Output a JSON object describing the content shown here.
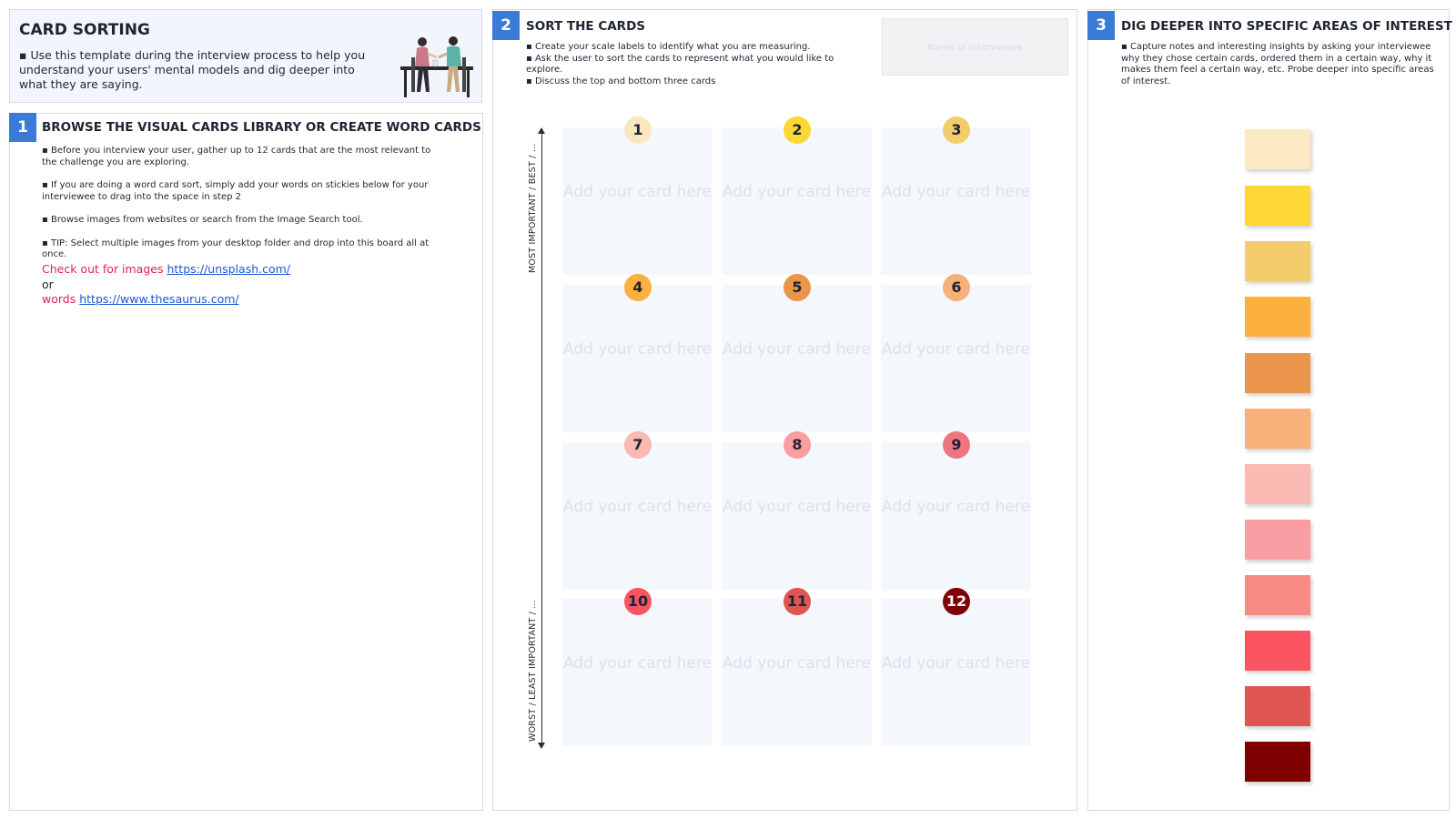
{
  "header": {
    "title": "CARD SORTING",
    "description": "▪ Use this template during the interview process to help you understand your users' mental models and dig deeper into what they are saying."
  },
  "step1": {
    "number": "1",
    "title": "BROWSE THE VISUAL CARDS LIBRARY OR CREATE WORD CARDS",
    "bullets": [
      "▪ Before you interview your user, gather up to 12 cards that are the most relevant to the challenge you are exploring.",
      "▪ If you are doing a word card sort, simply add your words on stickies below for your interviewee to drag into the space in step 2",
      "▪ Browse images from websites or search from the Image Search tool.",
      "▪ TIP: Select multiple images from your desktop folder and drop into this board all at once."
    ],
    "images_prefix": "Check out for images",
    "images_link": "https://unsplash.com/",
    "or_text": "or",
    "words_prefix": "words",
    "words_link": "https://www.thesaurus.com/"
  },
  "step2": {
    "number": "2",
    "title": "SORT THE CARDS",
    "bullets": [
      "▪ Create your scale labels to identify what you are measuring.",
      "▪ Ask the user to sort the cards to represent what you would like to explore.",
      "▪ Discuss the top and bottom three cards"
    ],
    "interviewee_placeholder": "Name of interviewee",
    "axis_top_label": "MOST IMPORTANT / BEST / ...",
    "axis_bottom_label": "WORST / LEAST IMPORTANT / ...",
    "card_placeholder": "Add your card here",
    "cards": [
      {
        "num": "1",
        "color": "#fbe7bd"
      },
      {
        "num": "2",
        "color": "#fdd835"
      },
      {
        "num": "3",
        "color": "#f2cd6a"
      },
      {
        "num": "4",
        "color": "#fbb040"
      },
      {
        "num": "5",
        "color": "#ea964a"
      },
      {
        "num": "6",
        "color": "#f7b07a"
      },
      {
        "num": "7",
        "color": "#fbb9b1"
      },
      {
        "num": "8",
        "color": "#fa9ea3"
      },
      {
        "num": "9",
        "color": "#ee7580"
      },
      {
        "num": "10",
        "color": "#f9545f"
      },
      {
        "num": "11",
        "color": "#e05552"
      },
      {
        "num": "12",
        "color": "#7f0104"
      }
    ]
  },
  "step3": {
    "number": "3",
    "title": "DIG DEEPER INTO SPECIFIC AREAS OF INTEREST",
    "description": "▪ Capture notes and interesting insights by asking your interviewee why they chose certain cards, ordered them in a certain way, why it makes them feel a certain way, etc. Probe deeper into specific areas of interest.",
    "stickies": [
      "#fbe9c3",
      "#fdd835",
      "#f3cd6b",
      "#fbb040",
      "#eb964c",
      "#f9b07b",
      "#fbbab4",
      "#fb9ea3",
      "#f98b84",
      "#fa5561",
      "#e05552",
      "#7f0000"
    ]
  }
}
